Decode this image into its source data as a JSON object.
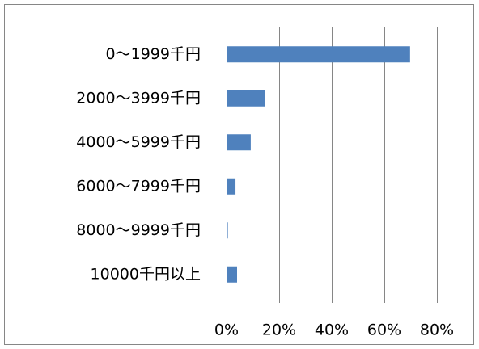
{
  "chart_data": {
    "type": "bar",
    "orientation": "horizontal",
    "categories": [
      "0～1999千円",
      "2000～3999千円",
      "4000～5999千円",
      "6000～7999千円",
      "8000～9999千円",
      "10000千円以上"
    ],
    "values": [
      69.8,
      14.5,
      9.2,
      3.4,
      0.5,
      4
    ],
    "color": "#4f81bd",
    "xlim": [
      0,
      80
    ],
    "xticks": [
      {
        "value": 0,
        "label": "0%"
      },
      {
        "value": 20,
        "label": "20%"
      },
      {
        "value": 40,
        "label": "40%"
      },
      {
        "value": 60,
        "label": "60%"
      },
      {
        "value": 80,
        "label": "80%"
      }
    ],
    "grid": true
  }
}
